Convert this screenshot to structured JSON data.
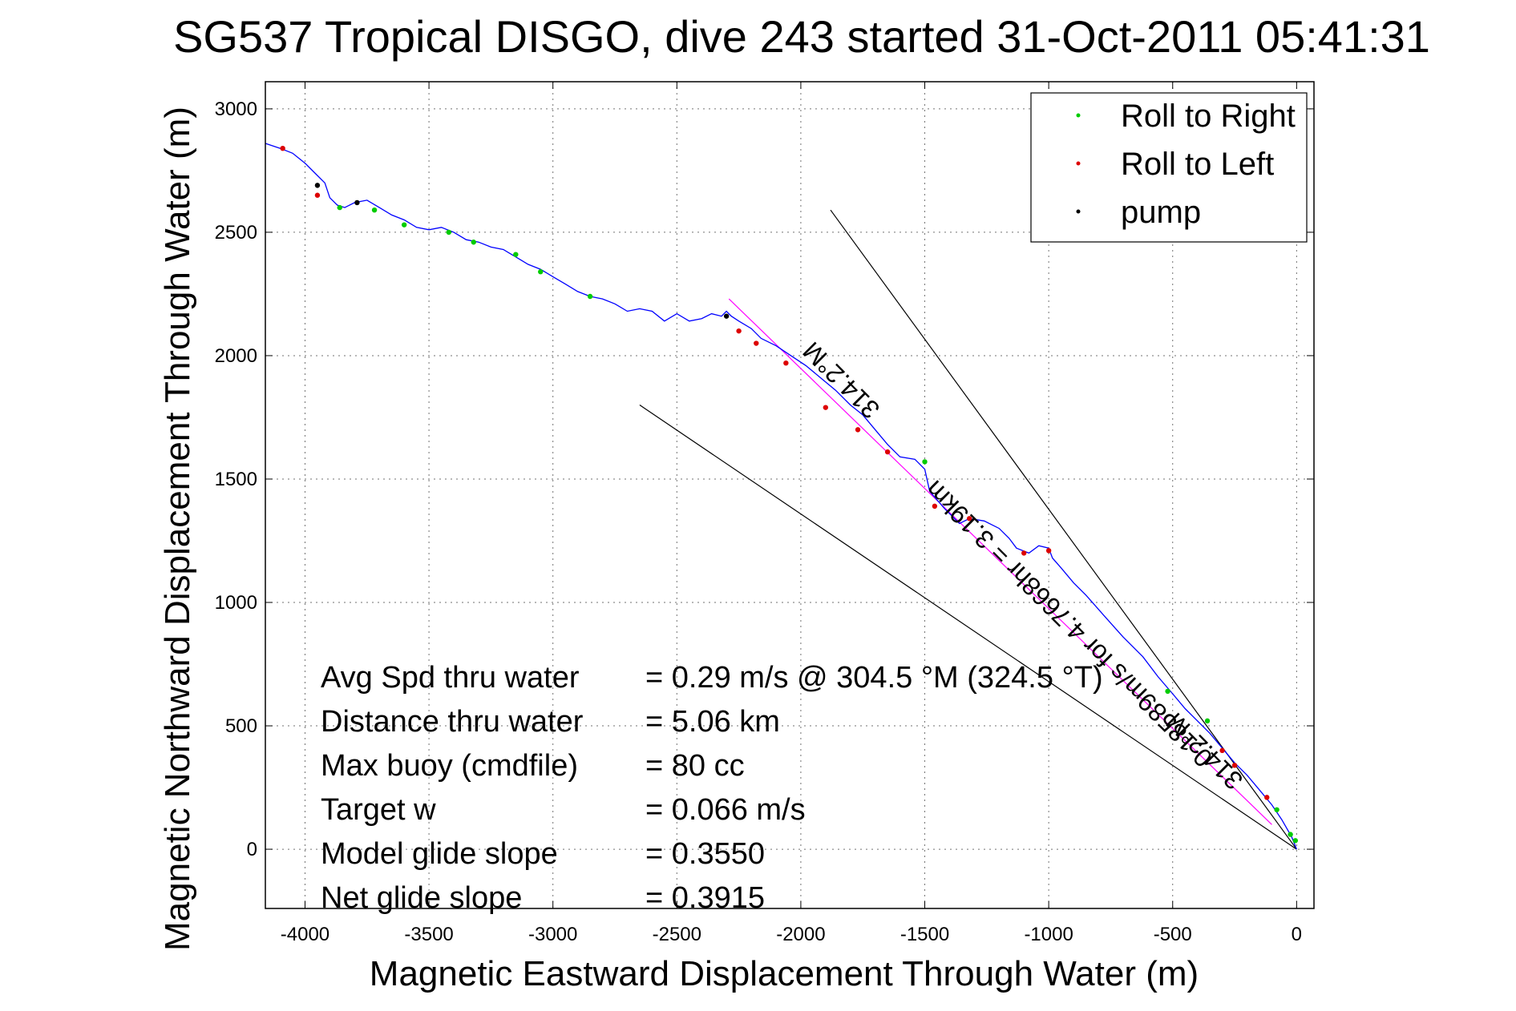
{
  "chart_data": {
    "type": "line",
    "title": "SG537 Tropical DISGO, dive 243 started 31-Oct-2011 05:41:31",
    "xlabel": "Magnetic Eastward Displacement Through Water (m)",
    "ylabel": "Magnetic Northward Displacement Through Water (m)",
    "xlim": [
      -4160,
      70
    ],
    "ylim": [
      -240,
      3110
    ],
    "xticks": [
      -4000,
      -3500,
      -3000,
      -2500,
      -2000,
      -1500,
      -1000,
      -500,
      0
    ],
    "yticks": [
      0,
      500,
      1000,
      1500,
      2000,
      2500,
      3000
    ],
    "grid": true,
    "legend_position": "top-right",
    "legend": [
      {
        "label": "Roll to Right",
        "color": "#00cc00"
      },
      {
        "label": "Roll to Left",
        "color": "#dd0000"
      },
      {
        "label": "pump",
        "color": "#000000"
      }
    ],
    "colors": {
      "track": "#0000ff",
      "heading_line": "#ff00ff",
      "cone": "#000000"
    },
    "series": [
      {
        "name": "",
        "x": [
          0,
          -20,
          -60,
          -100,
          -150,
          -200,
          -250,
          -300,
          -350,
          -400,
          -450,
          -500,
          -560,
          -620,
          -700,
          -780,
          -850,
          -900,
          -950,
          -985,
          -1000,
          -1040,
          -1080,
          -1130,
          -1160,
          -1200,
          -1260,
          -1320,
          -1360,
          -1420,
          -1480,
          -1500,
          -1540,
          -1600,
          -1650,
          -1700,
          -1750,
          -1800,
          -1860,
          -1920,
          -1980,
          -2040,
          -2100,
          -2160,
          -2200,
          -2250,
          -2280,
          -2300,
          -2320,
          -2360,
          -2400,
          -2450,
          -2500,
          -2550,
          -2600,
          -2650,
          -2700,
          -2750,
          -2800,
          -2850,
          -2900,
          -2950,
          -3000,
          -3050,
          -3100,
          -3150,
          -3200,
          -3250,
          -3300,
          -3350,
          -3400,
          -3450,
          -3500,
          -3550,
          -3600,
          -3650,
          -3700,
          -3750,
          -3800,
          -3840,
          -3870,
          -3900,
          -3920,
          -3960,
          -4000,
          -4050,
          -4100,
          -4160
        ],
        "y": [
          0,
          50,
          120,
          180,
          240,
          300,
          350,
          410,
          470,
          520,
          570,
          630,
          700,
          780,
          860,
          950,
          1030,
          1080,
          1140,
          1180,
          1220,
          1230,
          1200,
          1220,
          1260,
          1300,
          1330,
          1340,
          1320,
          1380,
          1450,
          1540,
          1580,
          1590,
          1640,
          1700,
          1760,
          1800,
          1860,
          1910,
          1960,
          2000,
          2040,
          2070,
          2110,
          2140,
          2160,
          2180,
          2160,
          2170,
          2150,
          2140,
          2170,
          2140,
          2180,
          2190,
          2180,
          2210,
          2230,
          2240,
          2260,
          2290,
          2320,
          2350,
          2370,
          2400,
          2430,
          2440,
          2460,
          2470,
          2500,
          2520,
          2510,
          2520,
          2550,
          2570,
          2600,
          2630,
          2620,
          2600,
          2610,
          2640,
          2700,
          2740,
          2780,
          2820,
          2840,
          2860
        ]
      }
    ],
    "roll_right_points": [
      [
        -5,
        35
      ],
      [
        -25,
        60
      ],
      [
        -80,
        160
      ],
      [
        -360,
        520
      ],
      [
        -520,
        640
      ],
      [
        -1500,
        1570
      ],
      [
        -2850,
        2240
      ],
      [
        -3050,
        2340
      ],
      [
        -3150,
        2410
      ],
      [
        -3320,
        2460
      ],
      [
        -3420,
        2500
      ],
      [
        -3600,
        2530
      ],
      [
        -3720,
        2590
      ],
      [
        -3860,
        2600
      ]
    ],
    "roll_left_points": [
      [
        -120,
        210
      ],
      [
        -250,
        340
      ],
      [
        -300,
        400
      ],
      [
        -1000,
        1210
      ],
      [
        -1100,
        1200
      ],
      [
        -1320,
        1340
      ],
      [
        -1460,
        1390
      ],
      [
        -1650,
        1610
      ],
      [
        -1770,
        1700
      ],
      [
        -1900,
        1790
      ],
      [
        -2060,
        1970
      ],
      [
        -2180,
        2050
      ],
      [
        -2250,
        2100
      ],
      [
        -3950,
        2650
      ],
      [
        -4090,
        2840
      ]
    ],
    "pump_points": [
      [
        -2300,
        2160
      ],
      [
        -3790,
        2620
      ],
      [
        -3950,
        2690
      ]
    ],
    "heading_line": {
      "x": [
        -100,
        -2290
      ],
      "y": [
        100,
        2230
      ]
    },
    "cone_lines": [
      {
        "x": [
          0,
          -1880
        ],
        "y": [
          0,
          2590
        ]
      },
      {
        "x": [
          0,
          -2650
        ],
        "y": [
          0,
          1800
        ]
      }
    ],
    "annotations": {
      "heading_a": "314.2°M",
      "heading_b": "314.2°M",
      "leg_speed": "0.18589m/s for 4.7668hr = 3.19km"
    },
    "stats": [
      {
        "label": "Avg Spd thru water",
        "value": "=  0.29 m/s @ 304.5 °M (324.5 °T)"
      },
      {
        "label": "Distance thru water",
        "value": "=  5.06 km"
      },
      {
        "label": "Max buoy (cmdfile)",
        "value": "= 80 cc"
      },
      {
        "label": "Target w",
        "value": "= 0.066 m/s"
      },
      {
        "label": "Model glide slope",
        "value": "= 0.3550"
      },
      {
        "label": "Net glide slope",
        "value": "= 0.3915"
      }
    ]
  }
}
